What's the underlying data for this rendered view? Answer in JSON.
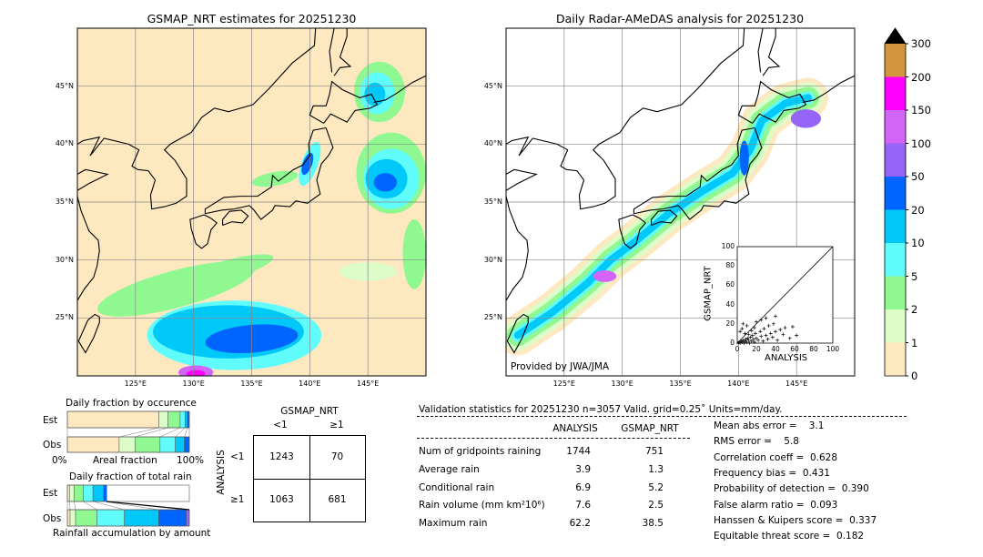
{
  "map_left": {
    "title": "GSMAP_NRT estimates for 20251230",
    "lon_ticks": [
      "125°E",
      "130°E",
      "135°E",
      "140°E",
      "145°E"
    ],
    "lat_ticks": [
      "45°N",
      "40°N",
      "35°N",
      "30°N",
      "25°N"
    ]
  },
  "map_right": {
    "title": "Daily Radar-AMeDAS analysis for 20251230",
    "lon_ticks": [
      "125°E",
      "130°E",
      "135°E",
      "140°E",
      "145°E"
    ],
    "lat_ticks": [
      "45°N",
      "40°N",
      "35°N",
      "30°N",
      "25°N"
    ],
    "credit": "Provided by JWA/JMA"
  },
  "colorbar": {
    "levels": [
      "0",
      "1",
      "2",
      "5",
      "10",
      "20",
      "50",
      "100",
      "150",
      "200",
      "300"
    ],
    "colors": [
      "#fde8c0",
      "#dcfcc8",
      "#90f890",
      "#60fcfc",
      "#00c8f8",
      "#0064ff",
      "#9664f8",
      "#d264f8",
      "#ff00ff",
      "#d2963c"
    ],
    "extend_color": "#000000"
  },
  "chart_data": [
    {
      "type": "bar",
      "title": "Daily fraction by occurence",
      "xlabel": "Areal fraction",
      "x_left_label": "0%",
      "x_right_label": "100%",
      "categories": [
        "Est",
        "Obs"
      ],
      "bins": [
        "0-1",
        "1-2",
        "2-5",
        "5-10",
        "10-20",
        "20-50"
      ],
      "series": [
        {
          "name": "Est",
          "values": [
            75,
            7.5,
            10,
            4,
            2,
            1.5
          ]
        },
        {
          "name": "Obs",
          "values": [
            42.5,
            13,
            20.5,
            12.5,
            7.5,
            4
          ]
        }
      ]
    },
    {
      "type": "bar",
      "title": "Daily fraction of total rain",
      "xlabel": "Rainfall accumulation by amount",
      "categories": [
        "Est",
        "Obs"
      ],
      "bins": [
        "0-1",
        "1-2",
        "2-5",
        "5-10",
        "10-20",
        "20-50",
        "50-100"
      ],
      "series": [
        {
          "name": "Est",
          "values": [
            1.75,
            3.75,
            7.5,
            8,
            8.75,
            2.5,
            0
          ]
        },
        {
          "name": "Obs",
          "values": [
            2.25,
            4.5,
            17.5,
            22.5,
            28.25,
            22.5,
            2.5
          ]
        }
      ]
    },
    {
      "type": "scatter",
      "xlabel": "ANALYSIS",
      "ylabel": "GSMAP_NRT",
      "xlim": [
        0,
        100
      ],
      "ylim": [
        0,
        100
      ],
      "ticks": [
        "0",
        "20",
        "40",
        "60",
        "80",
        "100"
      ],
      "points": [
        [
          1,
          0
        ],
        [
          2,
          1
        ],
        [
          3,
          0
        ],
        [
          4,
          2
        ],
        [
          5,
          1
        ],
        [
          6,
          3
        ],
        [
          7,
          0
        ],
        [
          8,
          2
        ],
        [
          9,
          4
        ],
        [
          10,
          1
        ],
        [
          11,
          5
        ],
        [
          12,
          3
        ],
        [
          13,
          0
        ],
        [
          14,
          6
        ],
        [
          15,
          2
        ],
        [
          16,
          8
        ],
        [
          17,
          4
        ],
        [
          18,
          1
        ],
        [
          19,
          10
        ],
        [
          20,
          5
        ],
        [
          22,
          3
        ],
        [
          24,
          12
        ],
        [
          25,
          7
        ],
        [
          27,
          2
        ],
        [
          28,
          15
        ],
        [
          30,
          8
        ],
        [
          32,
          4
        ],
        [
          33,
          18
        ],
        [
          35,
          10
        ],
        [
          37,
          6
        ],
        [
          38,
          20
        ],
        [
          40,
          12
        ],
        [
          42,
          3
        ],
        [
          45,
          14
        ],
        [
          48,
          9
        ],
        [
          50,
          16
        ],
        [
          55,
          5
        ],
        [
          58,
          17
        ],
        [
          62,
          8
        ],
        [
          3,
          12
        ],
        [
          5,
          15
        ],
        [
          8,
          10
        ],
        [
          10,
          18
        ],
        [
          12,
          9
        ],
        [
          6,
          20
        ],
        [
          15,
          13
        ],
        [
          18,
          16
        ],
        [
          20,
          22
        ],
        [
          25,
          24
        ],
        [
          30,
          26
        ],
        [
          40,
          28
        ]
      ]
    }
  ],
  "contingency": {
    "col_header": "GSMAP_NRT",
    "row_header": "ANALYSIS",
    "col_labels": [
      "<1",
      "≥1"
    ],
    "row_labels": [
      "<1",
      "≥1"
    ],
    "cells": [
      [
        "1243",
        "70"
      ],
      [
        "1063",
        "681"
      ]
    ]
  },
  "stats": {
    "title": "Validation statistics for 20251230  n=3057 Valid. grid=0.25˚ Units=mm/day.",
    "col_headers": [
      "ANALYSIS",
      "GSMAP_NRT"
    ],
    "rows": [
      {
        "label": "Num of gridpoints raining",
        "analysis": "1744",
        "gsmap": "751"
      },
      {
        "label": "Average rain",
        "analysis": "3.9",
        "gsmap": "1.3"
      },
      {
        "label": "Conditional rain",
        "analysis": "6.9",
        "gsmap": "5.2"
      },
      {
        "label": "Rain volume (mm km²10⁶)",
        "analysis": "7.6",
        "gsmap": "2.5"
      },
      {
        "label": "Maximum rain",
        "analysis": "62.2",
        "gsmap": "38.5"
      }
    ],
    "scores": [
      "Mean abs error =    3.1",
      "RMS error =    5.8",
      "Correlation coeff =  0.628",
      "Frequency bias =  0.431",
      "Probability of detection =  0.390",
      "False alarm ratio =  0.093",
      "Hanssen & Kuipers score =  0.337",
      "Equitable threat score =  0.182"
    ]
  }
}
